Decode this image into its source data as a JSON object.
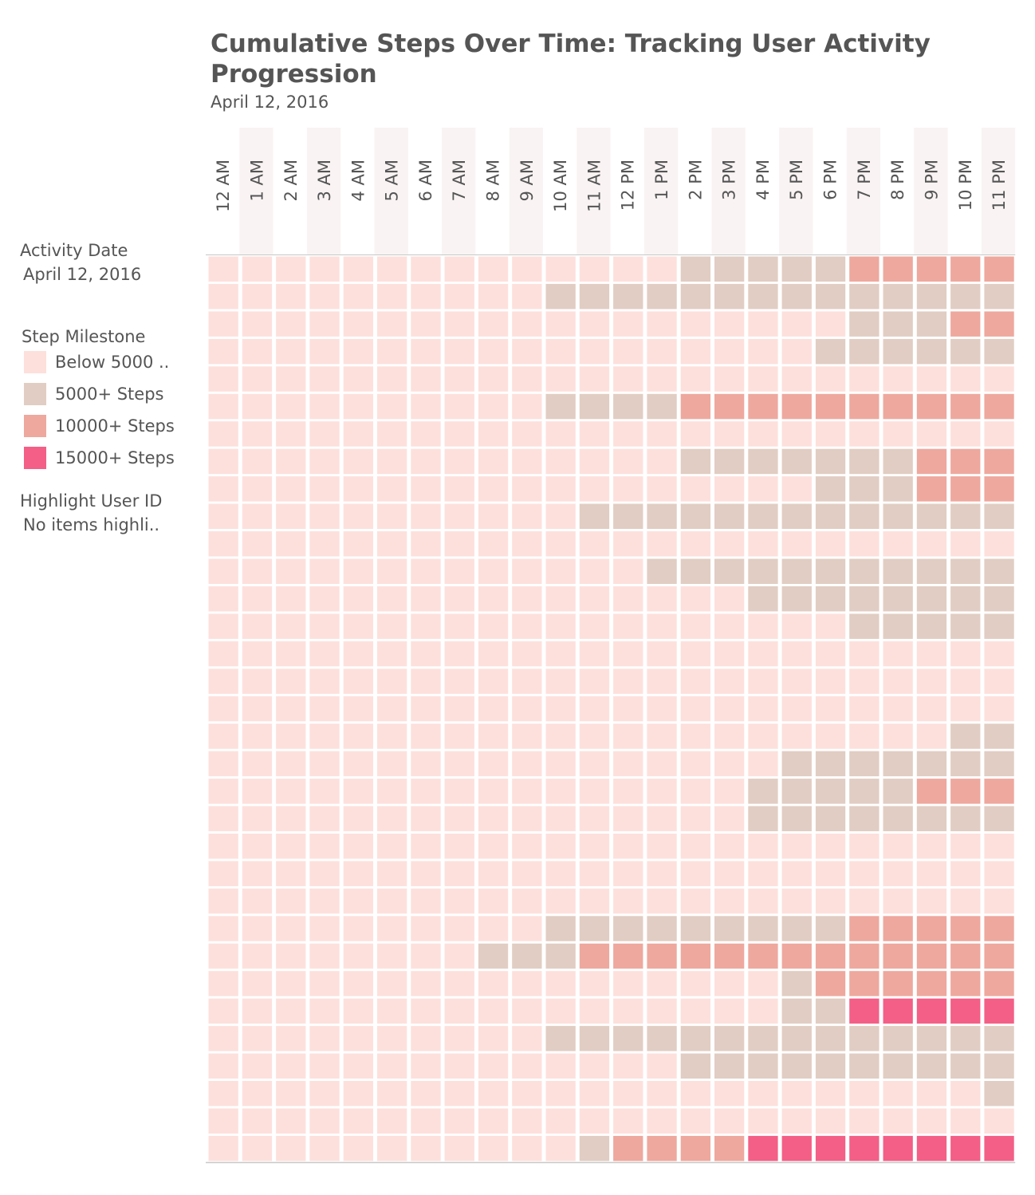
{
  "header": {
    "title": "Cumulative Steps Over Time: Tracking User Activity Progression",
    "subtitle": "April 12, 2016"
  },
  "filters": {
    "activity_date": {
      "title": "Activity Date",
      "value": "April 12, 2016"
    },
    "highlight_user": {
      "title": "Highlight User ID",
      "value": "No items highli.."
    }
  },
  "legend": {
    "title": "Step Milestone",
    "items": [
      {
        "label": "Below 5000 ..",
        "color": "#fde0dc"
      },
      {
        "label": "5000+ Steps",
        "color": "#e1cdc3"
      },
      {
        "label": "10000+ Steps",
        "color": "#eea89e"
      },
      {
        "label": "15000+ Steps",
        "color": "#f35f86"
      }
    ]
  },
  "colors": {
    "band": "#f9f3f3",
    "axis_line": "#c8c8c8",
    "text": "#555555"
  },
  "chart_data": {
    "type": "heatmap",
    "title": "Cumulative Steps Over Time: Tracking User Activity Progression",
    "subtitle": "April 12, 2016",
    "x_categories": [
      "12 AM",
      "1 AM",
      "2 AM",
      "3 AM",
      "4 AM",
      "5 AM",
      "6 AM",
      "7 AM",
      "8 AM",
      "9 AM",
      "10 AM",
      "11 AM",
      "12 PM",
      "1 PM",
      "2 PM",
      "3 PM",
      "4 PM",
      "5 PM",
      "6 PM",
      "7 PM",
      "8 PM",
      "9 PM",
      "10 PM",
      "11 PM"
    ],
    "x_axis_position": "top",
    "y_tick_labels_shown": false,
    "color_levels": [
      "Below 5000 ..",
      "5000+ Steps",
      "10000+ Steps",
      "15000+ Steps"
    ],
    "legend_position": "left",
    "rows": [
      [
        0,
        0,
        0,
        0,
        0,
        0,
        0,
        0,
        0,
        0,
        0,
        0,
        0,
        0,
        1,
        1,
        1,
        1,
        1,
        2,
        2,
        2,
        2,
        2
      ],
      [
        0,
        0,
        0,
        0,
        0,
        0,
        0,
        0,
        0,
        0,
        1,
        1,
        1,
        1,
        1,
        1,
        1,
        1,
        1,
        1,
        1,
        1,
        1,
        1
      ],
      [
        0,
        0,
        0,
        0,
        0,
        0,
        0,
        0,
        0,
        0,
        0,
        0,
        0,
        0,
        0,
        0,
        0,
        0,
        0,
        1,
        1,
        1,
        2,
        2
      ],
      [
        0,
        0,
        0,
        0,
        0,
        0,
        0,
        0,
        0,
        0,
        0,
        0,
        0,
        0,
        0,
        0,
        0,
        0,
        1,
        1,
        1,
        1,
        1,
        1
      ],
      [
        0,
        0,
        0,
        0,
        0,
        0,
        0,
        0,
        0,
        0,
        0,
        0,
        0,
        0,
        0,
        0,
        0,
        0,
        0,
        0,
        0,
        0,
        0,
        0
      ],
      [
        0,
        0,
        0,
        0,
        0,
        0,
        0,
        0,
        0,
        0,
        1,
        1,
        1,
        1,
        2,
        2,
        2,
        2,
        2,
        2,
        2,
        2,
        2,
        2
      ],
      [
        0,
        0,
        0,
        0,
        0,
        0,
        0,
        0,
        0,
        0,
        0,
        0,
        0,
        0,
        0,
        0,
        0,
        0,
        0,
        0,
        0,
        0,
        0,
        0
      ],
      [
        0,
        0,
        0,
        0,
        0,
        0,
        0,
        0,
        0,
        0,
        0,
        0,
        0,
        0,
        1,
        1,
        1,
        1,
        1,
        1,
        1,
        2,
        2,
        2
      ],
      [
        0,
        0,
        0,
        0,
        0,
        0,
        0,
        0,
        0,
        0,
        0,
        0,
        0,
        0,
        0,
        0,
        0,
        0,
        1,
        1,
        1,
        2,
        2,
        2
      ],
      [
        0,
        0,
        0,
        0,
        0,
        0,
        0,
        0,
        0,
        0,
        0,
        1,
        1,
        1,
        1,
        1,
        1,
        1,
        1,
        1,
        1,
        1,
        1,
        1
      ],
      [
        0,
        0,
        0,
        0,
        0,
        0,
        0,
        0,
        0,
        0,
        0,
        0,
        0,
        0,
        0,
        0,
        0,
        0,
        0,
        0,
        0,
        0,
        0,
        0
      ],
      [
        0,
        0,
        0,
        0,
        0,
        0,
        0,
        0,
        0,
        0,
        0,
        0,
        0,
        1,
        1,
        1,
        1,
        1,
        1,
        1,
        1,
        1,
        1,
        1
      ],
      [
        0,
        0,
        0,
        0,
        0,
        0,
        0,
        0,
        0,
        0,
        0,
        0,
        0,
        0,
        0,
        0,
        1,
        1,
        1,
        1,
        1,
        1,
        1,
        1
      ],
      [
        0,
        0,
        0,
        0,
        0,
        0,
        0,
        0,
        0,
        0,
        0,
        0,
        0,
        0,
        0,
        0,
        0,
        0,
        0,
        1,
        1,
        1,
        1,
        1
      ],
      [
        0,
        0,
        0,
        0,
        0,
        0,
        0,
        0,
        0,
        0,
        0,
        0,
        0,
        0,
        0,
        0,
        0,
        0,
        0,
        0,
        0,
        0,
        0,
        0
      ],
      [
        0,
        0,
        0,
        0,
        0,
        0,
        0,
        0,
        0,
        0,
        0,
        0,
        0,
        0,
        0,
        0,
        0,
        0,
        0,
        0,
        0,
        0,
        0,
        0
      ],
      [
        0,
        0,
        0,
        0,
        0,
        0,
        0,
        0,
        0,
        0,
        0,
        0,
        0,
        0,
        0,
        0,
        0,
        0,
        0,
        0,
        0,
        0,
        0,
        0
      ],
      [
        0,
        0,
        0,
        0,
        0,
        0,
        0,
        0,
        0,
        0,
        0,
        0,
        0,
        0,
        0,
        0,
        0,
        0,
        0,
        0,
        0,
        0,
        1,
        1
      ],
      [
        0,
        0,
        0,
        0,
        0,
        0,
        0,
        0,
        0,
        0,
        0,
        0,
        0,
        0,
        0,
        0,
        0,
        1,
        1,
        1,
        1,
        1,
        1,
        1
      ],
      [
        0,
        0,
        0,
        0,
        0,
        0,
        0,
        0,
        0,
        0,
        0,
        0,
        0,
        0,
        0,
        0,
        1,
        1,
        1,
        1,
        1,
        2,
        2,
        2
      ],
      [
        0,
        0,
        0,
        0,
        0,
        0,
        0,
        0,
        0,
        0,
        0,
        0,
        0,
        0,
        0,
        0,
        1,
        1,
        1,
        1,
        1,
        1,
        1,
        1
      ],
      [
        0,
        0,
        0,
        0,
        0,
        0,
        0,
        0,
        0,
        0,
        0,
        0,
        0,
        0,
        0,
        0,
        0,
        0,
        0,
        0,
        0,
        0,
        0,
        0
      ],
      [
        0,
        0,
        0,
        0,
        0,
        0,
        0,
        0,
        0,
        0,
        0,
        0,
        0,
        0,
        0,
        0,
        0,
        0,
        0,
        0,
        0,
        0,
        0,
        0
      ],
      [
        0,
        0,
        0,
        0,
        0,
        0,
        0,
        0,
        0,
        0,
        0,
        0,
        0,
        0,
        0,
        0,
        0,
        0,
        0,
        0,
        0,
        0,
        0,
        0
      ],
      [
        0,
        0,
        0,
        0,
        0,
        0,
        0,
        0,
        0,
        0,
        1,
        1,
        1,
        1,
        1,
        1,
        1,
        1,
        1,
        2,
        2,
        2,
        2,
        2
      ],
      [
        0,
        0,
        0,
        0,
        0,
        0,
        0,
        0,
        1,
        1,
        1,
        2,
        2,
        2,
        2,
        2,
        2,
        2,
        2,
        2,
        2,
        2,
        2,
        2
      ],
      [
        0,
        0,
        0,
        0,
        0,
        0,
        0,
        0,
        0,
        0,
        0,
        0,
        0,
        0,
        0,
        0,
        0,
        1,
        2,
        2,
        2,
        2,
        2,
        2
      ],
      [
        0,
        0,
        0,
        0,
        0,
        0,
        0,
        0,
        0,
        0,
        0,
        0,
        0,
        0,
        0,
        0,
        0,
        1,
        1,
        3,
        3,
        3,
        3,
        3
      ],
      [
        0,
        0,
        0,
        0,
        0,
        0,
        0,
        0,
        0,
        0,
        1,
        1,
        1,
        1,
        1,
        1,
        1,
        1,
        1,
        1,
        1,
        1,
        1,
        1
      ],
      [
        0,
        0,
        0,
        0,
        0,
        0,
        0,
        0,
        0,
        0,
        0,
        0,
        0,
        0,
        1,
        1,
        1,
        1,
        1,
        1,
        1,
        1,
        1,
        1
      ],
      [
        0,
        0,
        0,
        0,
        0,
        0,
        0,
        0,
        0,
        0,
        0,
        0,
        0,
        0,
        0,
        0,
        0,
        0,
        0,
        0,
        0,
        0,
        0,
        1
      ],
      [
        0,
        0,
        0,
        0,
        0,
        0,
        0,
        0,
        0,
        0,
        0,
        0,
        0,
        0,
        0,
        0,
        0,
        0,
        0,
        0,
        0,
        0,
        0,
        0
      ],
      [
        0,
        0,
        0,
        0,
        0,
        0,
        0,
        0,
        0,
        0,
        0,
        1,
        2,
        2,
        2,
        2,
        3,
        3,
        3,
        3,
        3,
        3,
        3,
        3
      ]
    ]
  }
}
